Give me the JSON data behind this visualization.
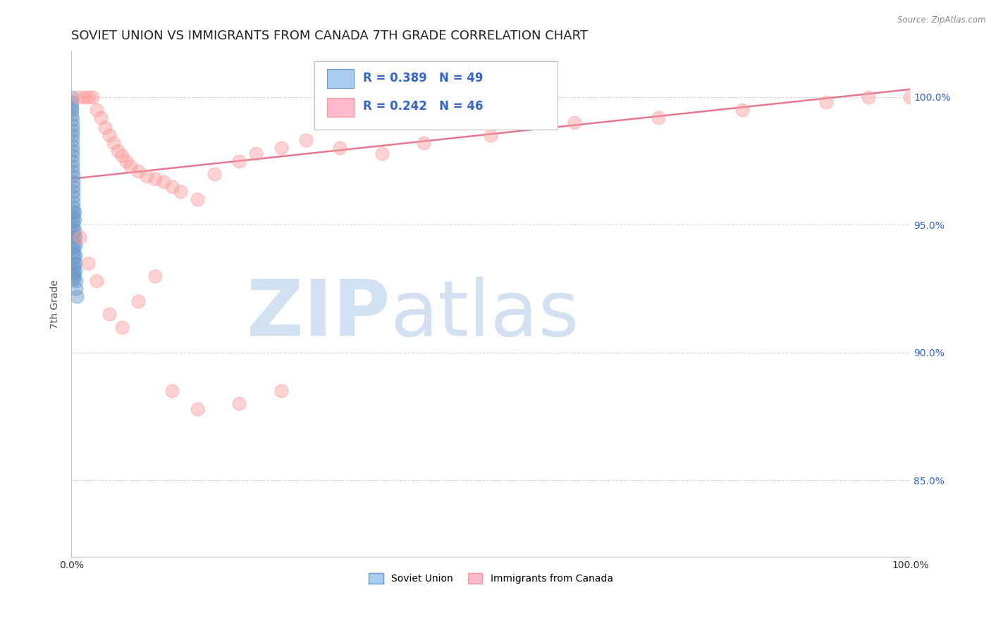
{
  "title": "SOVIET UNION VS IMMIGRANTS FROM CANADA 7TH GRADE CORRELATION CHART",
  "source_text": "Source: ZipAtlas.com",
  "ylabel": "7th Grade",
  "legend_R_blue": "R = 0.389",
  "legend_N_blue": "N = 49",
  "legend_R_pink": "R = 0.242",
  "legend_N_pink": "N = 46",
  "legend_label_blue": "Soviet Union",
  "legend_label_pink": "Immigrants from Canada",
  "blue_color": "#6699CC",
  "pink_color": "#FF9999",
  "trendline_color": "#E05575",
  "background_color": "#FFFFFF",
  "grid_color": "#BBBBBB",
  "xlim": [
    0.0,
    100.0
  ],
  "ylim": [
    82.0,
    101.8
  ],
  "yticks": [
    85.0,
    90.0,
    95.0,
    100.0
  ],
  "blue_x": [
    0.1,
    0.1,
    0.1,
    0.1,
    0.1,
    0.15,
    0.15,
    0.15,
    0.15,
    0.15,
    0.15,
    0.15,
    0.15,
    0.15,
    0.15,
    0.15,
    0.2,
    0.2,
    0.2,
    0.2,
    0.2,
    0.2,
    0.2,
    0.2,
    0.2,
    0.25,
    0.25,
    0.25,
    0.3,
    0.3,
    0.3,
    0.3,
    0.3,
    0.3,
    0.35,
    0.35,
    0.35,
    0.35,
    0.4,
    0.4,
    0.4,
    0.45,
    0.45,
    0.5,
    0.5,
    0.5,
    0.55,
    0.6,
    0.65
  ],
  "blue_y": [
    100.0,
    99.8,
    99.6,
    99.5,
    99.3,
    99.1,
    98.9,
    98.7,
    98.5,
    98.3,
    98.1,
    97.9,
    97.7,
    97.5,
    97.3,
    97.1,
    96.9,
    96.7,
    96.5,
    96.3,
    96.1,
    95.9,
    95.7,
    95.5,
    95.3,
    95.1,
    94.9,
    94.7,
    94.5,
    94.3,
    94.1,
    93.9,
    93.7,
    93.5,
    93.3,
    93.1,
    93.0,
    92.9,
    95.5,
    95.2,
    94.8,
    94.5,
    94.2,
    93.8,
    93.5,
    93.2,
    92.8,
    92.5,
    92.2
  ],
  "pink_x": [
    0.8,
    1.5,
    2.0,
    2.5,
    3.0,
    3.5,
    4.0,
    4.5,
    5.0,
    5.5,
    6.0,
    6.5,
    7.0,
    8.0,
    9.0,
    10.0,
    11.0,
    12.0,
    13.0,
    15.0,
    17.0,
    20.0,
    22.0,
    25.0,
    28.0,
    32.0,
    37.0,
    42.0,
    50.0,
    60.0,
    70.0,
    80.0,
    90.0,
    100.0,
    95.0,
    1.0,
    2.0,
    3.0,
    4.5,
    6.0,
    8.0,
    10.0,
    12.0,
    15.0,
    20.0,
    25.0
  ],
  "pink_y": [
    100.0,
    100.0,
    100.0,
    100.0,
    99.5,
    99.2,
    98.8,
    98.5,
    98.2,
    97.9,
    97.7,
    97.5,
    97.3,
    97.1,
    96.9,
    96.8,
    96.7,
    96.5,
    96.3,
    96.0,
    97.0,
    97.5,
    97.8,
    98.0,
    98.3,
    98.0,
    97.8,
    98.2,
    98.5,
    99.0,
    99.2,
    99.5,
    99.8,
    100.0,
    100.0,
    94.5,
    93.5,
    92.8,
    91.5,
    91.0,
    92.0,
    93.0,
    88.5,
    87.8,
    88.0,
    88.5
  ],
  "trendline_x0": 0.0,
  "trendline_x1": 100.0,
  "trendline_y0": 96.8,
  "trendline_y1": 100.3
}
